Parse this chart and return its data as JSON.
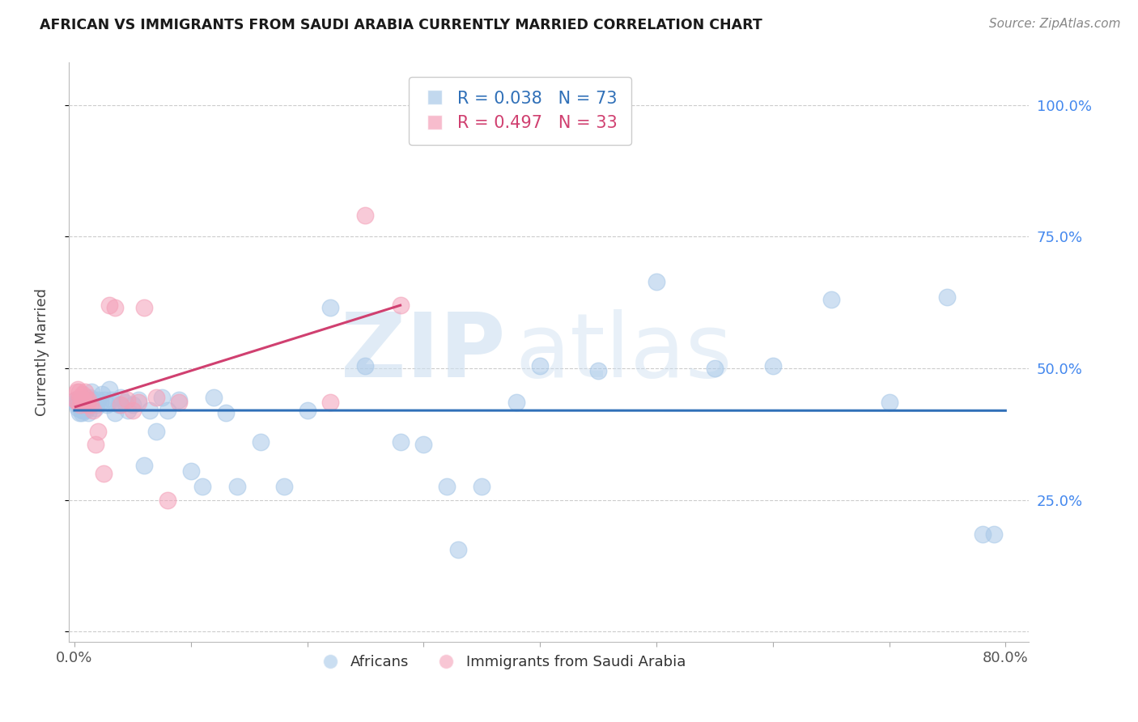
{
  "title": "AFRICAN VS IMMIGRANTS FROM SAUDI ARABIA CURRENTLY MARRIED CORRELATION CHART",
  "source": "Source: ZipAtlas.com",
  "ylabel": "Currently Married",
  "xlim": [
    -0.005,
    0.82
  ],
  "ylim": [
    -0.02,
    1.08
  ],
  "africans_R": 0.038,
  "africans_N": 73,
  "saudi_R": 0.497,
  "saudi_N": 33,
  "africans_color": "#a8c8e8",
  "saudi_color": "#f4a0b8",
  "africans_line_color": "#3070b8",
  "saudi_line_color": "#d04070",
  "africans_x": [
    0.001,
    0.002,
    0.002,
    0.003,
    0.003,
    0.004,
    0.004,
    0.005,
    0.005,
    0.006,
    0.006,
    0.007,
    0.007,
    0.008,
    0.008,
    0.009,
    0.01,
    0.01,
    0.011,
    0.012,
    0.013,
    0.014,
    0.015,
    0.016,
    0.017,
    0.018,
    0.019,
    0.02,
    0.022,
    0.024,
    0.026,
    0.028,
    0.03,
    0.032,
    0.035,
    0.038,
    0.04,
    0.043,
    0.046,
    0.05,
    0.055,
    0.06,
    0.065,
    0.07,
    0.075,
    0.08,
    0.09,
    0.1,
    0.11,
    0.12,
    0.13,
    0.14,
    0.16,
    0.18,
    0.2,
    0.22,
    0.25,
    0.28,
    0.3,
    0.32,
    0.35,
    0.38,
    0.4,
    0.45,
    0.5,
    0.55,
    0.6,
    0.65,
    0.7,
    0.75,
    0.78,
    0.79,
    0.33
  ],
  "africans_y": [
    0.44,
    0.435,
    0.43,
    0.425,
    0.44,
    0.415,
    0.43,
    0.435,
    0.44,
    0.42,
    0.415,
    0.43,
    0.44,
    0.42,
    0.435,
    0.425,
    0.44,
    0.42,
    0.43,
    0.415,
    0.445,
    0.43,
    0.455,
    0.44,
    0.435,
    0.425,
    0.43,
    0.44,
    0.435,
    0.45,
    0.44,
    0.43,
    0.46,
    0.44,
    0.415,
    0.43,
    0.445,
    0.435,
    0.42,
    0.43,
    0.44,
    0.315,
    0.42,
    0.38,
    0.445,
    0.42,
    0.44,
    0.305,
    0.275,
    0.445,
    0.415,
    0.275,
    0.36,
    0.275,
    0.42,
    0.615,
    0.505,
    0.36,
    0.355,
    0.275,
    0.275,
    0.435,
    0.505,
    0.495,
    0.665,
    0.5,
    0.505,
    0.63,
    0.435,
    0.635,
    0.185,
    0.185,
    0.155
  ],
  "saudi_x": [
    0.001,
    0.002,
    0.003,
    0.003,
    0.004,
    0.005,
    0.005,
    0.006,
    0.007,
    0.007,
    0.008,
    0.009,
    0.01,
    0.011,
    0.012,
    0.014,
    0.016,
    0.018,
    0.02,
    0.025,
    0.03,
    0.035,
    0.04,
    0.045,
    0.05,
    0.055,
    0.06,
    0.07,
    0.08,
    0.09,
    0.22,
    0.25,
    0.28
  ],
  "saudi_y": [
    0.44,
    0.455,
    0.46,
    0.435,
    0.455,
    0.445,
    0.43,
    0.44,
    0.435,
    0.45,
    0.44,
    0.455,
    0.445,
    0.43,
    0.44,
    0.43,
    0.42,
    0.355,
    0.38,
    0.3,
    0.62,
    0.615,
    0.43,
    0.44,
    0.42,
    0.435,
    0.615,
    0.445,
    0.25,
    0.435,
    0.435,
    0.79,
    0.62
  ],
  "africans_line_x": [
    0.001,
    0.79
  ],
  "africans_line_y": [
    0.435,
    0.455
  ],
  "saudi_line_x": [
    0.001,
    0.28
  ],
  "saudi_line_y": [
    0.38,
    0.72
  ]
}
